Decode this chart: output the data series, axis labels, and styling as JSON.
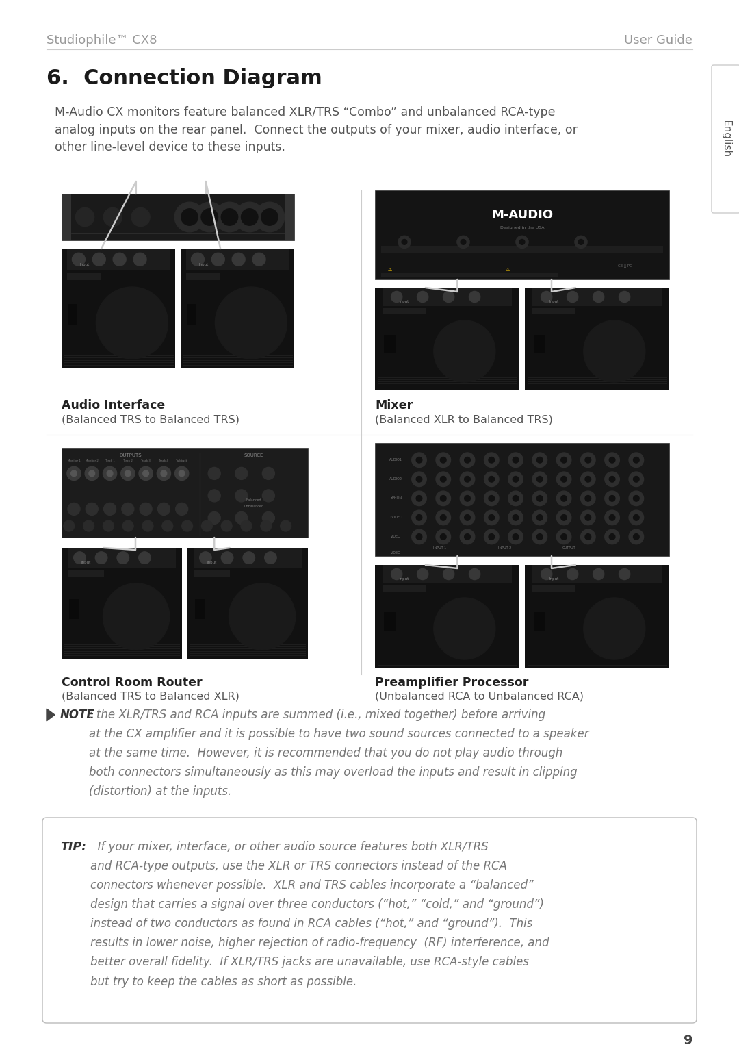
{
  "header_left": "Studiophile™ CX8",
  "header_right": "User Guide",
  "section_title": "6.  Connection Diagram",
  "intro_text": "M-Audio CX monitors feature balanced XLR/TRS “Combo” and unbalanced RCA-type\nanalog inputs on the rear panel.  Connect the outputs of your mixer, audio interface, or\nother line-level device to these inputs.",
  "tab_text": "English",
  "caption1_bold": "Audio Interface",
  "caption1_normal": "(Balanced TRS to Balanced TRS)",
  "caption2_bold": "Mixer",
  "caption2_normal": "(Balanced XLR to Balanced TRS)",
  "caption3_bold": "Control Room Router",
  "caption3_normal": "(Balanced TRS to Balanced XLR)",
  "caption4_bold": "Preamplifier Processor",
  "caption4_normal": "(Unbalanced RCA to Unbalanced RCA)",
  "note_bold": "NOTE",
  "note_text": ": the XLR/TRS and RCA inputs are summed (i.e., mixed together) before arriving\nat the CX amplifier and it is possible to have two sound sources connected to a speaker\nat the same time.  However, it is recommended that you do not play audio through\nboth connectors simultaneously as this may overload the inputs and result in clipping\n(distortion) at the inputs.",
  "tip_bold": "TIP:",
  "tip_text": "  If your mixer, interface, or other audio source features both XLR/TRS\nand RCA-type outputs, use the XLR or TRS connectors instead of the RCA\nconnectors whenever possible.  XLR and TRS cables incorporate a “balanced”\ndesign that carries a signal over three conductors (“hot,” “cold,” and “ground”)\ninstead of two conductors as found in RCA cables (“hot,” and “ground”).  This\nresults in lower noise, higher rejection of radio-frequency  (RF) interference, and\nbetter overall fidelity.  If XLR/TRS jacks are unavailable, use RCA-style cables\nbut try to keep the cables as short as possible.",
  "page_number": "9",
  "bg_color": "#ffffff",
  "text_color": "#888888",
  "dark_text_color": "#555555",
  "black_text_color": "#222222",
  "header_color": "#999999",
  "section_title_color": "#1a1a1a",
  "note_color": "#777777",
  "tip_box_border": "#bbbbbb",
  "divider_color": "#cccccc",
  "img_dark": "#111111",
  "img_mid": "#2a2a2a",
  "img_light": "#444444",
  "cable_color": "#cccccc"
}
